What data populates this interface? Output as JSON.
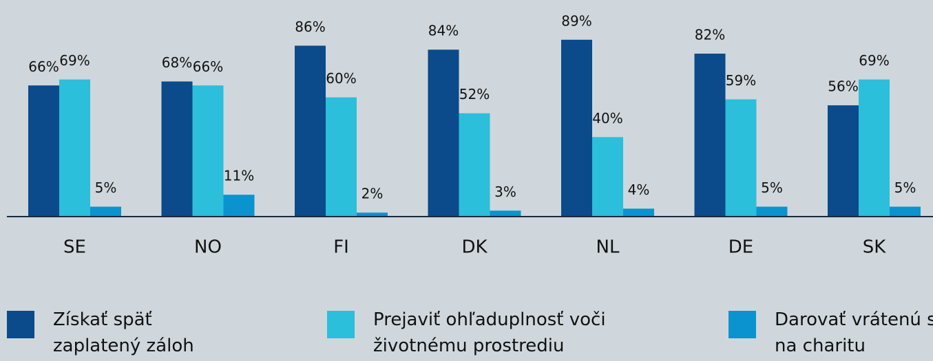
{
  "chart_data": {
    "type": "bar",
    "categories": [
      "SE",
      "NO",
      "FI",
      "DK",
      "NL",
      "DE",
      "SK"
    ],
    "ylim": [
      0,
      100
    ],
    "series": [
      {
        "name": "Získať späť zaplatený záloh",
        "color": "#0b4a8b",
        "values": [
          66,
          68,
          86,
          84,
          89,
          82,
          56
        ],
        "value_labels": [
          "66%",
          "68%",
          "86%",
          "84%",
          "89%",
          "82%",
          "56%"
        ]
      },
      {
        "name": "Prejaviť ohľaduplnosť voči životnému prostrediu",
        "color": "#2bbfdb",
        "values": [
          69,
          66,
          60,
          52,
          40,
          59,
          69
        ],
        "value_labels": [
          "69%",
          "66%",
          "60%",
          "52%",
          "40%",
          "59%",
          "69%"
        ]
      },
      {
        "name": "Darovať vrátenú sumu na charitu",
        "color": "#0a93cf",
        "values": [
          5,
          11,
          2,
          3,
          4,
          5,
          5
        ],
        "value_labels": [
          "5%",
          "11%",
          "2%",
          "3%",
          "4%",
          "5%",
          "5%"
        ]
      }
    ]
  }
}
